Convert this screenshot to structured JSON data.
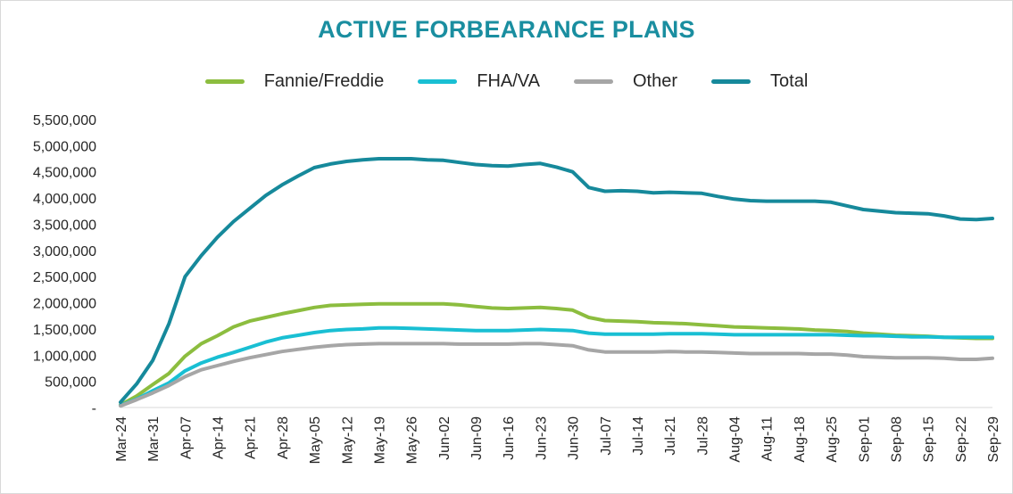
{
  "chart_data": {
    "type": "line",
    "title": "ACTIVE FORBEARANCE PLANS",
    "xlabel": "",
    "ylabel": "",
    "ylim": [
      0,
      5500000
    ],
    "legend_position": "top",
    "grid": false,
    "y_ticks": [
      "-",
      "500,000",
      "1,000,000",
      "1,500,000",
      "2,000,000",
      "2,500,000",
      "3,000,000",
      "3,500,000",
      "4,000,000",
      "4,500,000",
      "5,000,000",
      "5,500,000"
    ],
    "y_tick_values": [
      0,
      500000,
      1000000,
      1500000,
      2000000,
      2500000,
      3000000,
      3500000,
      4000000,
      4500000,
      5000000,
      5500000
    ],
    "x_tick_labels": [
      "Mar-24",
      "Mar-31",
      "Apr-07",
      "Apr-14",
      "Apr-21",
      "Apr-28",
      "May-05",
      "May-12",
      "May-19",
      "May-26",
      "Jun-02",
      "Jun-09",
      "Jun-16",
      "Jun-23",
      "Jun-30",
      "Jul-07",
      "Jul-14",
      "Jul-21",
      "Jul-28",
      "Aug-04",
      "Aug-11",
      "Aug-18",
      "Aug-25",
      "Sep-01",
      "Sep-08",
      "Sep-15",
      "Sep-22",
      "Sep-29"
    ],
    "x": [
      "Mar-24",
      "Mar-27",
      "Mar-31",
      "Apr-03",
      "Apr-07",
      "Apr-10",
      "Apr-14",
      "Apr-17",
      "Apr-21",
      "Apr-24",
      "Apr-28",
      "May-01",
      "May-05",
      "May-08",
      "May-12",
      "May-15",
      "May-19",
      "May-22",
      "May-26",
      "May-29",
      "Jun-02",
      "Jun-05",
      "Jun-09",
      "Jun-12",
      "Jun-16",
      "Jun-19",
      "Jun-23",
      "Jun-26",
      "Jun-30",
      "Jul-03",
      "Jul-07",
      "Jul-10",
      "Jul-14",
      "Jul-17",
      "Jul-21",
      "Jul-24",
      "Jul-28",
      "Jul-31",
      "Aug-04",
      "Aug-07",
      "Aug-11",
      "Aug-14",
      "Aug-18",
      "Aug-21",
      "Aug-25",
      "Aug-28",
      "Sep-01",
      "Sep-04",
      "Sep-08",
      "Sep-11",
      "Sep-15",
      "Sep-18",
      "Sep-22",
      "Sep-25",
      "Sep-29"
    ],
    "series": [
      {
        "name": "Fannie/Freddie",
        "color": "#8cbd3f",
        "values": [
          50000,
          220000,
          440000,
          650000,
          980000,
          1220000,
          1370000,
          1540000,
          1650000,
          1720000,
          1790000,
          1850000,
          1910000,
          1950000,
          1960000,
          1970000,
          1980000,
          1980000,
          1980000,
          1980000,
          1980000,
          1960000,
          1930000,
          1900000,
          1890000,
          1900000,
          1910000,
          1890000,
          1860000,
          1720000,
          1660000,
          1650000,
          1640000,
          1620000,
          1610000,
          1600000,
          1580000,
          1560000,
          1540000,
          1530000,
          1520000,
          1510000,
          1500000,
          1480000,
          1470000,
          1450000,
          1420000,
          1400000,
          1380000,
          1370000,
          1360000,
          1340000,
          1330000,
          1320000,
          1320000
        ]
      },
      {
        "name": "FHA/VA",
        "color": "#19bfd3",
        "values": [
          40000,
          160000,
          320000,
          470000,
          700000,
          850000,
          960000,
          1050000,
          1150000,
          1250000,
          1330000,
          1380000,
          1430000,
          1470000,
          1490000,
          1500000,
          1520000,
          1520000,
          1510000,
          1500000,
          1490000,
          1480000,
          1470000,
          1470000,
          1470000,
          1480000,
          1490000,
          1480000,
          1470000,
          1420000,
          1400000,
          1400000,
          1400000,
          1400000,
          1410000,
          1410000,
          1410000,
          1400000,
          1390000,
          1390000,
          1390000,
          1390000,
          1390000,
          1390000,
          1390000,
          1380000,
          1370000,
          1370000,
          1360000,
          1350000,
          1350000,
          1340000,
          1340000,
          1340000,
          1340000
        ]
      },
      {
        "name": "Other",
        "color": "#a6a6a6",
        "values": [
          30000,
          150000,
          280000,
          420000,
          590000,
          720000,
          800000,
          880000,
          950000,
          1010000,
          1070000,
          1110000,
          1150000,
          1180000,
          1200000,
          1210000,
          1220000,
          1220000,
          1220000,
          1220000,
          1220000,
          1210000,
          1210000,
          1210000,
          1210000,
          1220000,
          1220000,
          1200000,
          1180000,
          1100000,
          1060000,
          1060000,
          1060000,
          1060000,
          1070000,
          1060000,
          1060000,
          1050000,
          1040000,
          1030000,
          1030000,
          1030000,
          1030000,
          1020000,
          1020000,
          1000000,
          970000,
          960000,
          950000,
          950000,
          950000,
          940000,
          920000,
          920000,
          940000
        ]
      },
      {
        "name": "Total",
        "color": "#16899b",
        "values": [
          100000,
          450000,
          900000,
          1600000,
          2500000,
          2900000,
          3250000,
          3550000,
          3800000,
          4050000,
          4250000,
          4420000,
          4580000,
          4650000,
          4700000,
          4730000,
          4750000,
          4750000,
          4750000,
          4730000,
          4720000,
          4680000,
          4640000,
          4620000,
          4610000,
          4640000,
          4660000,
          4590000,
          4500000,
          4200000,
          4130000,
          4140000,
          4130000,
          4100000,
          4110000,
          4100000,
          4090000,
          4030000,
          3980000,
          3950000,
          3940000,
          3940000,
          3940000,
          3940000,
          3920000,
          3850000,
          3780000,
          3750000,
          3720000,
          3710000,
          3700000,
          3660000,
          3600000,
          3590000,
          3610000
        ]
      }
    ]
  }
}
